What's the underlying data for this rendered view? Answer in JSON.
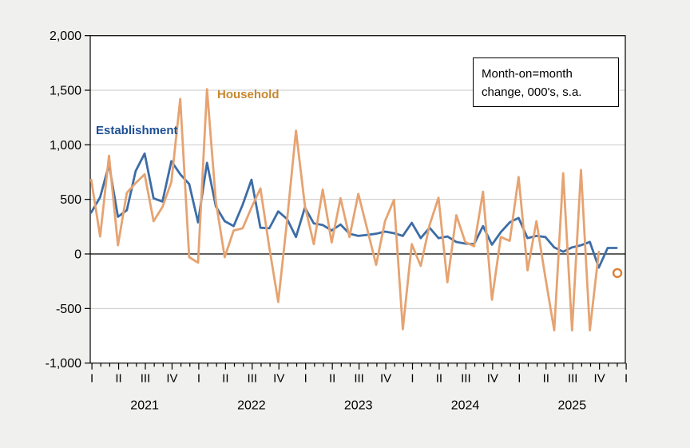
{
  "figure": {
    "background": "#f0f0ee",
    "plot_background": "#ffffff",
    "grid_color": "#c9c9c9",
    "axis_color": "#000000"
  },
  "legend_box": {
    "line1": "Month-on=month",
    "line2": "change, 000's, s.a."
  },
  "series_labels": {
    "establishment": "Establishment",
    "household": "Household"
  },
  "chart_data": {
    "type": "line",
    "title": "Month-on=month change, 000's, s.a.",
    "x_unit": "month",
    "x_start": "2021-01",
    "x_end": "2025-12",
    "ylim": [
      -1000,
      2000
    ],
    "grid": "horizontal",
    "y_ticks": [
      {
        "value": 2000,
        "label": "2,000"
      },
      {
        "value": 1500,
        "label": "1,500"
      },
      {
        "value": 1000,
        "label": "1,000"
      },
      {
        "value": 500,
        "label": "500"
      },
      {
        "value": 0,
        "label": "0"
      },
      {
        "value": -500,
        "label": "-500"
      },
      {
        "value": -1000,
        "label": "-1,000"
      }
    ],
    "gridline_values": [
      1500,
      1000,
      500,
      -500
    ],
    "zero_line_value": 0,
    "quarter_tick_labels": [
      "I",
      "II",
      "III",
      "IV",
      "I",
      "II",
      "III",
      "IV",
      "I",
      "II",
      "III",
      "IV",
      "I",
      "II",
      "III",
      "IV",
      "I",
      "II",
      "III",
      "IV",
      "I"
    ],
    "year_labels": [
      "2021",
      "2022",
      "2023",
      "2024",
      "2025"
    ],
    "series": [
      {
        "name": "Establishment",
        "color": "#3d6da6",
        "values": [
          380,
          520,
          820,
          340,
          400,
          760,
          920,
          510,
          480,
          850,
          730,
          640,
          290,
          835,
          435,
          300,
          255,
          450,
          680,
          240,
          235,
          390,
          320,
          155,
          425,
          280,
          265,
          215,
          270,
          185,
          165,
          175,
          185,
          205,
          190,
          165,
          285,
          145,
          240,
          145,
          160,
          110,
          95,
          90,
          255,
          85,
          200,
          290,
          330,
          145,
          165,
          155,
          60,
          20,
          60,
          80,
          110,
          -125,
          55,
          55
        ]
      },
      {
        "name": "Household",
        "color": "#e6a371",
        "values": [
          680,
          160,
          900,
          80,
          560,
          650,
          730,
          300,
          430,
          660,
          1420,
          -30,
          -80,
          1510,
          480,
          -30,
          215,
          235,
          425,
          600,
          60,
          -440,
          310,
          1130,
          440,
          90,
          590,
          105,
          510,
          155,
          550,
          225,
          -100,
          300,
          495,
          -690,
          90,
          -110,
          265,
          515,
          -260,
          355,
          110,
          70,
          570,
          -420,
          155,
          120,
          705,
          -150,
          300,
          -215,
          -700,
          740,
          -700,
          770,
          -700,
          20,
          null,
          null
        ]
      }
    ],
    "household_isolated_point": {
      "month_index": 59,
      "value": -175,
      "marker": "open-circle",
      "color": "#dd7e33"
    }
  }
}
